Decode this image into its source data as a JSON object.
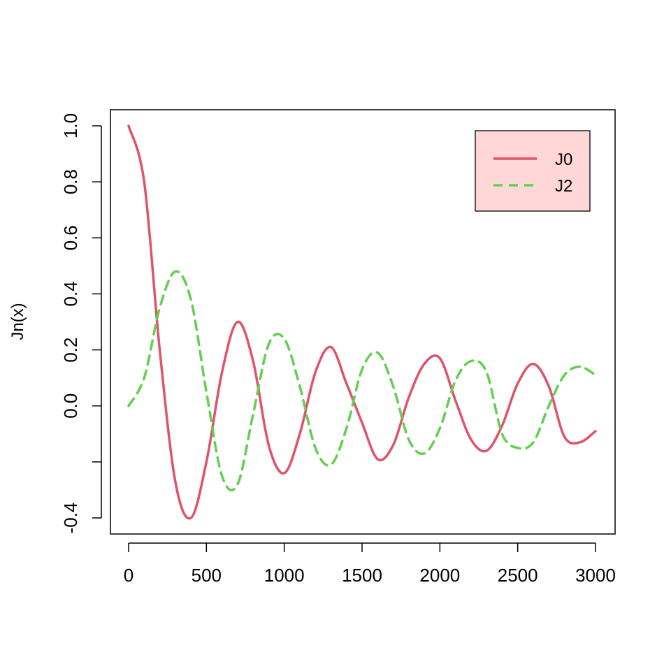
{
  "chart_data": {
    "type": "line",
    "title": "",
    "xlabel": "",
    "ylabel": "Jn(x)",
    "xlim": [
      0,
      3000
    ],
    "ylim": [
      -0.4,
      1.0
    ],
    "x_ticks": [
      0,
      500,
      1000,
      1500,
      2000,
      2500,
      3000
    ],
    "x_tick_labels": [
      "0",
      "500",
      "1000",
      "1500",
      "2000",
      "2500",
      "3000"
    ],
    "y_ticks": [
      -0.4,
      -0.2,
      0.0,
      0.2,
      0.4,
      0.6,
      0.8,
      1.0
    ],
    "y_tick_labels": [
      "-0.4",
      "",
      "0.0",
      "0.2",
      "0.4",
      "0.6",
      "0.8",
      "1.0"
    ],
    "grid": false,
    "legend_position": "top-right",
    "legend_background": "#FFD7D7",
    "x": [
      0,
      100,
      200,
      300,
      400,
      500,
      600,
      700,
      800,
      900,
      1000,
      1100,
      1200,
      1300,
      1400,
      1500,
      1600,
      1700,
      1800,
      1900,
      2000,
      2100,
      2200,
      2300,
      2400,
      2500,
      2600,
      2700,
      2800,
      2900,
      3000
    ],
    "series": [
      {
        "name": "J0",
        "color": "#DF536B",
        "dash": "solid",
        "values": [
          1.0,
          0.8,
          0.2,
          -0.27,
          -0.4,
          -0.2,
          0.12,
          0.3,
          0.16,
          -0.14,
          -0.24,
          -0.1,
          0.12,
          0.21,
          0.08,
          -0.06,
          -0.19,
          -0.14,
          0.03,
          0.15,
          0.17,
          0.02,
          -0.12,
          -0.16,
          -0.07,
          0.08,
          0.15,
          0.07,
          -0.11,
          -0.13,
          -0.09
        ]
      },
      {
        "name": "J2",
        "color": "#61D04F",
        "dash": "dashed",
        "values": [
          0.0,
          0.1,
          0.35,
          0.48,
          0.38,
          0.05,
          -0.25,
          -0.28,
          -0.03,
          0.22,
          0.24,
          0.07,
          -0.15,
          -0.21,
          -0.08,
          0.13,
          0.19,
          0.07,
          -0.12,
          -0.17,
          -0.08,
          0.09,
          0.16,
          0.12,
          -0.1,
          -0.15,
          -0.13,
          0.0,
          0.11,
          0.14,
          0.11
        ]
      }
    ]
  }
}
